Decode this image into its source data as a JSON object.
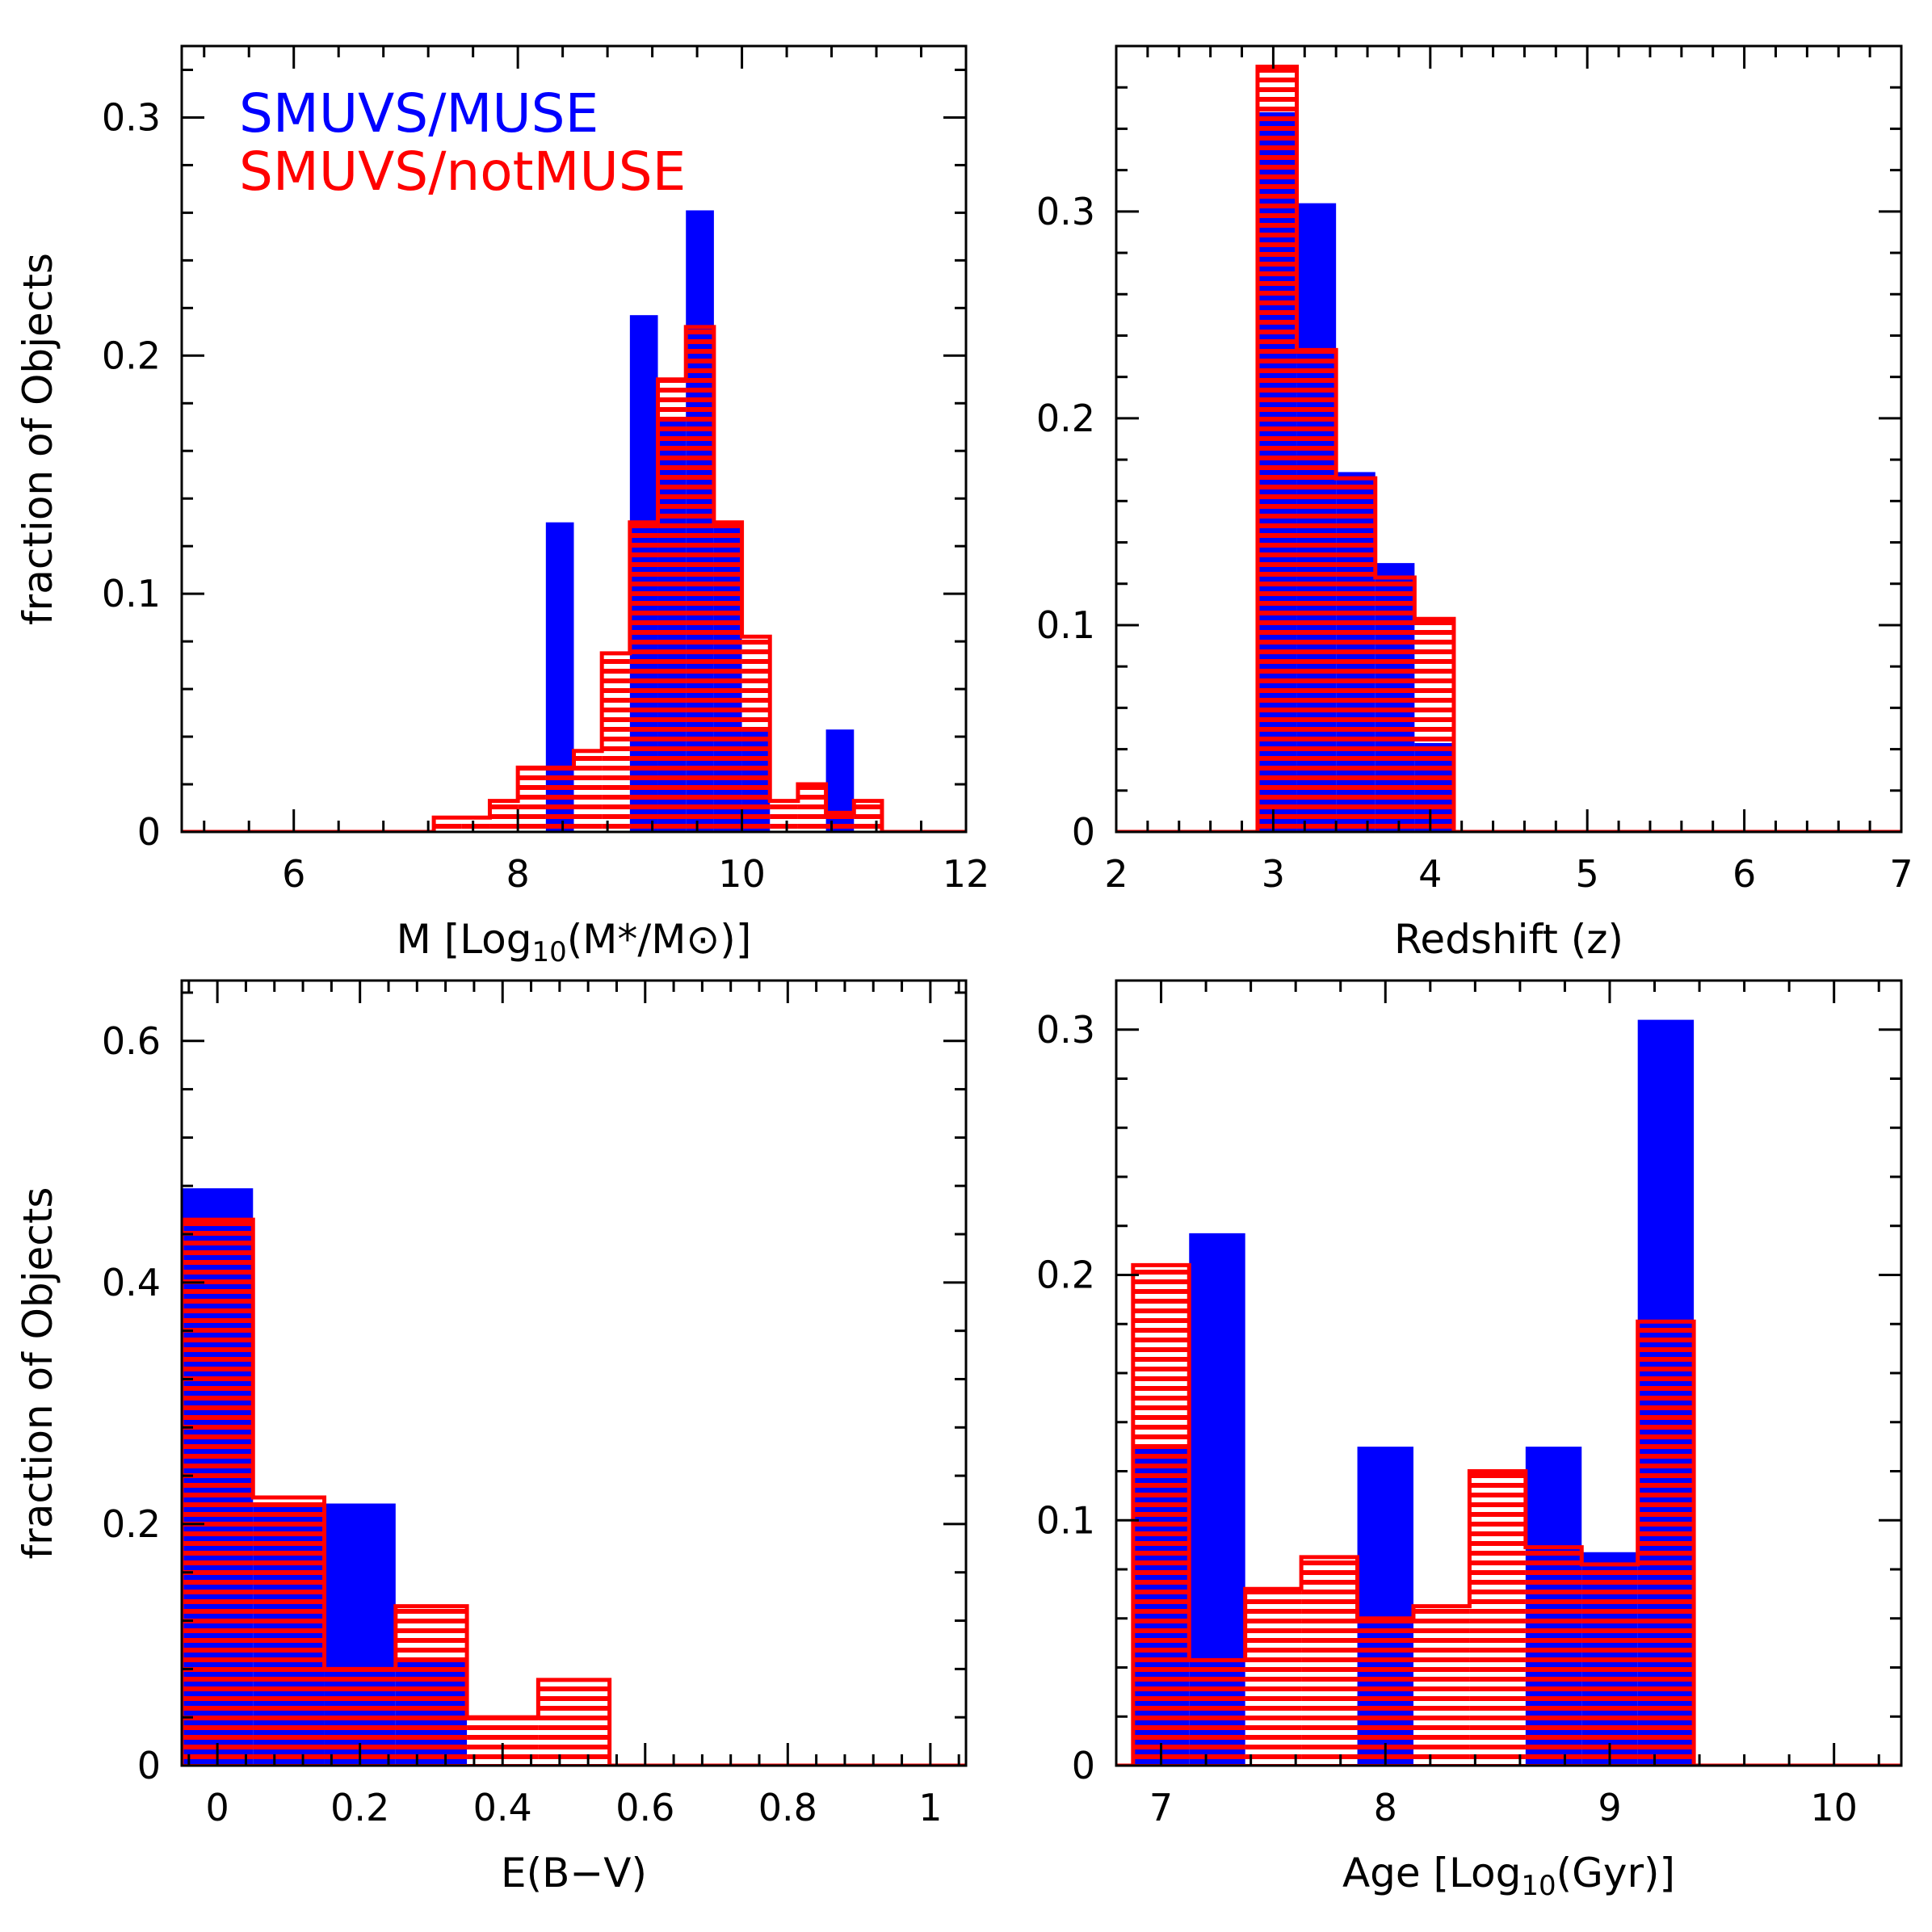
{
  "legend": {
    "muse_label": "SMUVS/MUSE",
    "notmuse_label": "SMUVS/notMUSE"
  },
  "colors": {
    "muse": "#0000ff",
    "notmuse": "#ff0000",
    "axis": "#000000",
    "background": "#ffffff"
  },
  "chart_data": [
    {
      "type": "bar",
      "xlabel": "M [Log10(M*/M⊙)]",
      "ylabel": "fraction of Objects",
      "xlim": [
        5,
        12
      ],
      "ylim": [
        0,
        0.33
      ],
      "xticks": [
        6,
        8,
        10,
        12
      ],
      "yticks": [
        0,
        0.1,
        0.2,
        0.3
      ],
      "ytick_labels": [
        "0",
        "0.1",
        "0.2",
        "0.3"
      ],
      "legend_position": "top-left",
      "series": [
        {
          "name": "SMUVS/MUSE",
          "style": "filled",
          "bins": [
            {
              "x0": 8.25,
              "x1": 8.5,
              "y": 0.13
            },
            {
              "x0": 8.5,
              "x1": 8.75,
              "y": 0.0
            },
            {
              "x0": 8.75,
              "x1": 9.0,
              "y": 0.0
            },
            {
              "x0": 9.0,
              "x1": 9.25,
              "y": 0.217
            },
            {
              "x0": 9.25,
              "x1": 9.5,
              "y": 0.174
            },
            {
              "x0": 9.5,
              "x1": 9.75,
              "y": 0.261
            },
            {
              "x0": 9.75,
              "x1": 10.0,
              "y": 0.13
            },
            {
              "x0": 10.0,
              "x1": 10.25,
              "y": 0.043
            },
            {
              "x0": 10.25,
              "x1": 10.5,
              "y": 0.0
            },
            {
              "x0": 10.5,
              "x1": 10.75,
              "y": 0.0
            },
            {
              "x0": 10.75,
              "x1": 11.0,
              "y": 0.043
            }
          ]
        },
        {
          "name": "SMUVS/notMUSE",
          "style": "hatched",
          "bins": [
            {
              "x0": 7.25,
              "x1": 7.5,
              "y": 0.006
            },
            {
              "x0": 7.5,
              "x1": 7.75,
              "y": 0.006
            },
            {
              "x0": 7.75,
              "x1": 8.0,
              "y": 0.013
            },
            {
              "x0": 8.0,
              "x1": 8.25,
              "y": 0.027
            },
            {
              "x0": 8.25,
              "x1": 8.5,
              "y": 0.027
            },
            {
              "x0": 8.5,
              "x1": 8.75,
              "y": 0.034
            },
            {
              "x0": 8.75,
              "x1": 9.0,
              "y": 0.075
            },
            {
              "x0": 9.0,
              "x1": 9.25,
              "y": 0.13
            },
            {
              "x0": 9.25,
              "x1": 9.5,
              "y": 0.19
            },
            {
              "x0": 9.5,
              "x1": 9.75,
              "y": 0.212
            },
            {
              "x0": 9.75,
              "x1": 10.0,
              "y": 0.13
            },
            {
              "x0": 10.0,
              "x1": 10.25,
              "y": 0.082
            },
            {
              "x0": 10.25,
              "x1": 10.5,
              "y": 0.013
            },
            {
              "x0": 10.5,
              "x1": 10.75,
              "y": 0.02
            },
            {
              "x0": 10.75,
              "x1": 11.0,
              "y": 0.008
            },
            {
              "x0": 11.0,
              "x1": 11.25,
              "y": 0.013
            }
          ]
        }
      ]
    },
    {
      "type": "bar",
      "xlabel": "Redshift (z)",
      "ylabel": "",
      "xlim": [
        2,
        7
      ],
      "ylim": [
        0,
        0.38
      ],
      "xticks": [
        2,
        3,
        4,
        5,
        6,
        7
      ],
      "yticks": [
        0,
        0.1,
        0.2,
        0.3
      ],
      "ytick_labels": [
        "0",
        "0.1",
        "0.2",
        "0.3"
      ],
      "series": [
        {
          "name": "SMUVS/MUSE",
          "style": "filled",
          "bins": [
            {
              "x0": 2.9,
              "x1": 3.15,
              "y": 0.348
            },
            {
              "x0": 3.15,
              "x1": 3.4,
              "y": 0.304
            },
            {
              "x0": 3.4,
              "x1": 3.65,
              "y": 0.174
            },
            {
              "x0": 3.65,
              "x1": 3.9,
              "y": 0.13
            },
            {
              "x0": 3.9,
              "x1": 4.15,
              "y": 0.043
            }
          ]
        },
        {
          "name": "SMUVS/notMUSE",
          "style": "hatched",
          "bins": [
            {
              "x0": 2.9,
              "x1": 3.15,
              "y": 0.37
            },
            {
              "x0": 3.15,
              "x1": 3.4,
              "y": 0.233
            },
            {
              "x0": 3.4,
              "x1": 3.65,
              "y": 0.171
            },
            {
              "x0": 3.65,
              "x1": 3.9,
              "y": 0.123
            },
            {
              "x0": 3.9,
              "x1": 4.15,
              "y": 0.103
            }
          ]
        }
      ]
    },
    {
      "type": "bar",
      "xlabel": "E(B−V)",
      "ylabel": "fraction of Objects",
      "xlim": [
        -0.05,
        1.05
      ],
      "ylim": [
        0,
        0.65
      ],
      "xticks": [
        0,
        0.2,
        0.4,
        0.6,
        0.8,
        1
      ],
      "xtick_labels": [
        "0",
        "0.2",
        "0.4",
        "0.6",
        "0.8",
        "1"
      ],
      "yticks": [
        0,
        0.2,
        0.4,
        0.6
      ],
      "ytick_labels": [
        "0",
        "0.2",
        "0.4",
        "0.6"
      ],
      "series": [
        {
          "name": "SMUVS/MUSE",
          "style": "filled",
          "bins": [
            {
              "x0": -0.05,
              "x1": 0.05,
              "y": 0.478
            },
            {
              "x0": 0.05,
              "x1": 0.15,
              "y": 0.217
            },
            {
              "x0": 0.15,
              "x1": 0.25,
              "y": 0.217
            },
            {
              "x0": 0.25,
              "x1": 0.35,
              "y": 0.087
            }
          ]
        },
        {
          "name": "SMUVS/notMUSE",
          "style": "hatched",
          "bins": [
            {
              "x0": -0.05,
              "x1": 0.05,
              "y": 0.452
            },
            {
              "x0": 0.05,
              "x1": 0.15,
              "y": 0.222
            },
            {
              "x0": 0.15,
              "x1": 0.25,
              "y": 0.08
            },
            {
              "x0": 0.25,
              "x1": 0.35,
              "y": 0.132
            },
            {
              "x0": 0.35,
              "x1": 0.45,
              "y": 0.04
            },
            {
              "x0": 0.45,
              "x1": 0.55,
              "y": 0.071
            }
          ]
        }
      ]
    },
    {
      "type": "bar",
      "xlabel": "Age [Log10(Gyr)]",
      "ylabel": "",
      "xlim": [
        6.8,
        10.3
      ],
      "ylim": [
        0,
        0.32
      ],
      "xticks": [
        7,
        8,
        9,
        10
      ],
      "yticks": [
        0,
        0.1,
        0.2,
        0.3
      ],
      "ytick_labels": [
        "0",
        "0.1",
        "0.2",
        "0.3"
      ],
      "series": [
        {
          "name": "SMUVS/MUSE",
          "style": "filled",
          "bins": [
            {
              "x0": 6.875,
              "x1": 7.125,
              "y": 0.13
            },
            {
              "x0": 7.125,
              "x1": 7.375,
              "y": 0.217
            },
            {
              "x0": 7.375,
              "x1": 7.625,
              "y": 0.0
            },
            {
              "x0": 7.625,
              "x1": 7.875,
              "y": 0.0
            },
            {
              "x0": 7.875,
              "x1": 8.125,
              "y": 0.13
            },
            {
              "x0": 8.125,
              "x1": 8.375,
              "y": 0.0
            },
            {
              "x0": 8.375,
              "x1": 8.625,
              "y": 0.0
            },
            {
              "x0": 8.625,
              "x1": 8.875,
              "y": 0.13
            },
            {
              "x0": 8.875,
              "x1": 9.125,
              "y": 0.087
            },
            {
              "x0": 9.125,
              "x1": 9.375,
              "y": 0.304
            }
          ]
        },
        {
          "name": "SMUVS/notMUSE",
          "style": "hatched",
          "bins": [
            {
              "x0": 6.875,
              "x1": 7.125,
              "y": 0.204
            },
            {
              "x0": 7.125,
              "x1": 7.375,
              "y": 0.043
            },
            {
              "x0": 7.375,
              "x1": 7.625,
              "y": 0.072
            },
            {
              "x0": 7.625,
              "x1": 7.875,
              "y": 0.085
            },
            {
              "x0": 7.875,
              "x1": 8.125,
              "y": 0.06
            },
            {
              "x0": 8.125,
              "x1": 8.375,
              "y": 0.065
            },
            {
              "x0": 8.375,
              "x1": 8.625,
              "y": 0.12
            },
            {
              "x0": 8.625,
              "x1": 8.875,
              "y": 0.089
            },
            {
              "x0": 8.875,
              "x1": 9.125,
              "y": 0.082
            },
            {
              "x0": 9.125,
              "x1": 9.375,
              "y": 0.181
            }
          ]
        }
      ]
    }
  ]
}
